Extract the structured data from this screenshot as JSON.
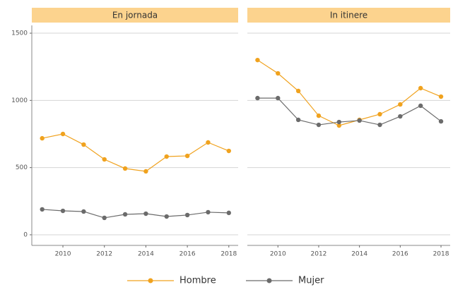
{
  "chart_data": {
    "type": "line",
    "panels": [
      "En jornada",
      "In itinere"
    ],
    "x": [
      2009,
      2010,
      2011,
      2012,
      2013,
      2014,
      2015,
      2016,
      2017,
      2018
    ],
    "xlim": [
      2008.5,
      2018.45
    ],
    "xticks": [
      2010,
      2012,
      2014,
      2016,
      2018
    ],
    "ylim": [
      -79,
      1558
    ],
    "yticks": [
      0,
      500,
      1000,
      1500
    ],
    "grid": true,
    "series": [
      {
        "name": "Hombre",
        "color": "#f0a21e",
        "values": [
          [
            718,
            750,
            671,
            561,
            493,
            472,
            582,
            587,
            687,
            624
          ],
          [
            1300,
            1201,
            1070,
            886,
            813,
            855,
            897,
            970,
            1091,
            1028
          ]
        ]
      },
      {
        "name": "Mujer",
        "color": "#6b6b6b",
        "values": [
          [
            189,
            178,
            173,
            126,
            152,
            157,
            136,
            147,
            168,
            163
          ],
          [
            1017,
            1017,
            855,
            818,
            839,
            850,
            818,
            881,
            960,
            844
          ]
        ]
      }
    ]
  }
}
